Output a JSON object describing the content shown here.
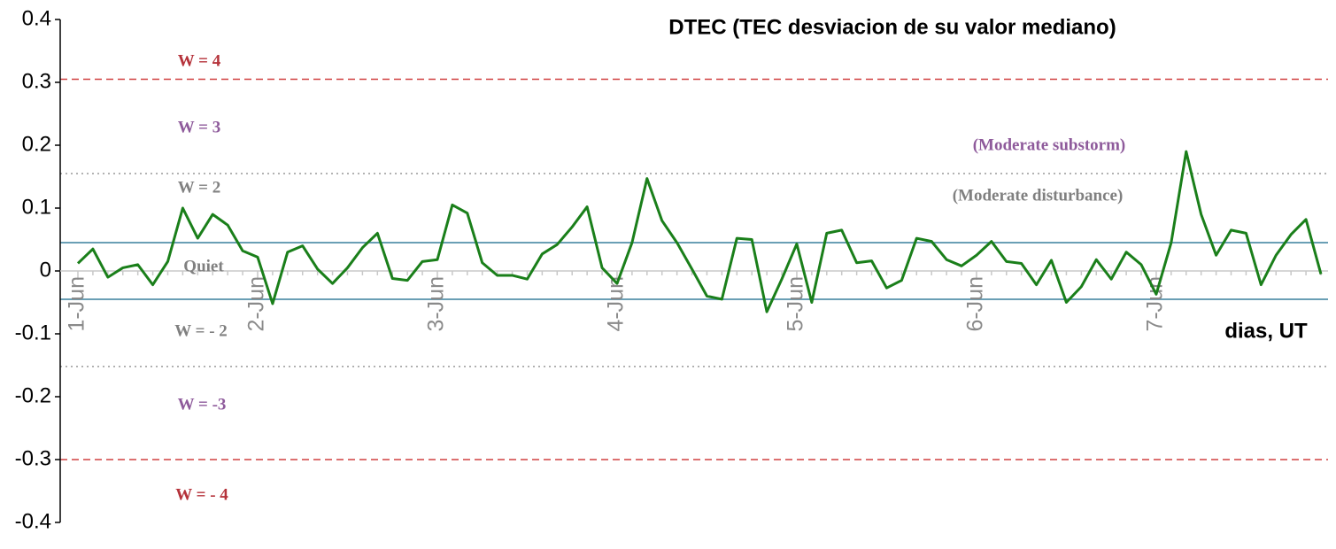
{
  "chart_data": {
    "type": "line",
    "title": "DTEC (TEC desviacion de su valor mediano)",
    "x_label": "dias, UT",
    "categories": [
      "1-Jun",
      null,
      null,
      null,
      null,
      null,
      null,
      null,
      null,
      null,
      null,
      null,
      "2-Jun",
      null,
      null,
      null,
      null,
      null,
      null,
      null,
      null,
      null,
      null,
      null,
      "3-Jun",
      null,
      null,
      null,
      null,
      null,
      null,
      null,
      null,
      null,
      null,
      null,
      "4-Jun",
      null,
      null,
      null,
      null,
      null,
      null,
      null,
      null,
      null,
      null,
      null,
      "5-Jun",
      null,
      null,
      null,
      null,
      null,
      null,
      null,
      null,
      null,
      null,
      null,
      "6-Jun",
      null,
      null,
      null,
      null,
      null,
      null,
      null,
      null,
      null,
      null,
      null,
      "7-Jun",
      null,
      null,
      null,
      null,
      null,
      null,
      null,
      null,
      null,
      null,
      null
    ],
    "series": [
      {
        "name": "DTEC",
        "color": "#1a7f1a",
        "values": [
          0.012,
          0.035,
          -0.01,
          0.005,
          0.01,
          -0.022,
          0.015,
          0.1,
          0.052,
          0.09,
          0.073,
          0.032,
          0.022,
          -0.052,
          0.03,
          0.04,
          0.003,
          -0.02,
          0.005,
          0.037,
          0.06,
          -0.012,
          -0.015,
          0.015,
          0.018,
          0.105,
          0.092,
          0.013,
          -0.007,
          -0.007,
          -0.013,
          0.027,
          0.042,
          0.07,
          0.102,
          0.005,
          -0.02,
          0.045,
          0.147,
          0.08,
          0.045,
          0.003,
          -0.04,
          -0.045,
          0.052,
          0.05,
          -0.065,
          -0.013,
          0.043,
          -0.05,
          0.06,
          0.065,
          0.013,
          0.016,
          -0.027,
          -0.015,
          0.052,
          0.047,
          0.018,
          0.008,
          0.025,
          0.047,
          0.015,
          0.012,
          -0.022,
          0.017,
          -0.05,
          -0.025,
          0.018,
          -0.013,
          0.03,
          0.01,
          -0.037,
          0.045,
          0.19,
          0.09,
          0.025,
          0.065,
          0.06,
          -0.022,
          0.025,
          0.058,
          0.082,
          -0.005
        ]
      }
    ],
    "ylim": [
      -0.4,
      0.4
    ],
    "yticks": [
      0.4,
      0.3,
      0.2,
      0.1,
      0,
      -0.1,
      -0.2,
      -0.3,
      -0.4
    ],
    "reference_lines": [
      {
        "value": 0.305,
        "color": "#d04040",
        "style": "dashed"
      },
      {
        "value": 0.155,
        "color": "#999999",
        "style": "dotted"
      },
      {
        "value": 0.045,
        "color": "#6a9fb5",
        "style": "solid"
      },
      {
        "value": -0.045,
        "color": "#6a9fb5",
        "style": "solid"
      },
      {
        "value": -0.152,
        "color": "#999999",
        "style": "dotted"
      },
      {
        "value": -0.3,
        "color": "#d04040",
        "style": "dashed"
      }
    ],
    "annotations": [
      {
        "text": "W = 4",
        "color": "#b5323a"
      },
      {
        "text": "W = 3",
        "color": "#8e5a9b"
      },
      {
        "text": "W = 2",
        "color": "#808080"
      },
      {
        "text": "Quiet",
        "color": "#808080"
      },
      {
        "text": "W = - 2",
        "color": "#808080"
      },
      {
        "text": "W = -3",
        "color": "#8e5a9b"
      },
      {
        "text": "W = - 4",
        "color": "#b5323a"
      },
      {
        "text": "(Moderate substorm)",
        "color": "#8e5a9b"
      },
      {
        "text": "(Moderate disturbance)",
        "color": "#808080"
      }
    ]
  }
}
